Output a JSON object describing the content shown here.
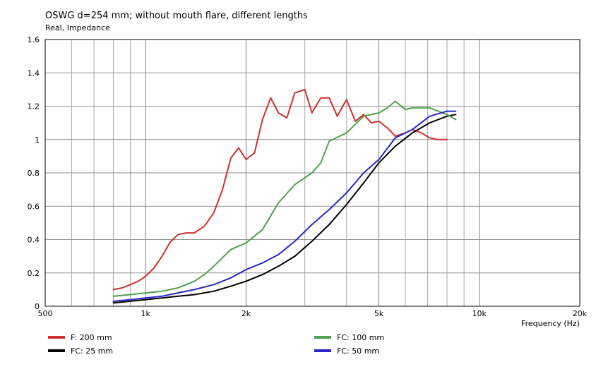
{
  "chart_data": {
    "type": "line",
    "title": "OSWG d=254 mm; without mouth flare, different lengths",
    "subtitle": "Real, Impedance",
    "xlabel": "Frequency  (Hz)",
    "ylabel": "",
    "x_scale": "log",
    "xlim": [
      500,
      20000
    ],
    "ylim": [
      0,
      1.6
    ],
    "grid": true,
    "legend_position": "bottom",
    "x_ticks": [
      {
        "value": 500,
        "label": "500"
      },
      {
        "value": 1000,
        "label": "1k"
      },
      {
        "value": 2000,
        "label": "2k"
      },
      {
        "value": 5000,
        "label": "5k"
      },
      {
        "value": 10000,
        "label": "10k"
      },
      {
        "value": 20000,
        "label": "20k"
      }
    ],
    "y_ticks": [
      {
        "value": 0,
        "label": "0"
      },
      {
        "value": 0.2,
        "label": "0.2"
      },
      {
        "value": 0.4,
        "label": "0.4"
      },
      {
        "value": 0.6,
        "label": "0.6"
      },
      {
        "value": 0.8,
        "label": "0.8"
      },
      {
        "value": 1.0,
        "label": "1"
      },
      {
        "value": 1.2,
        "label": "1.2"
      },
      {
        "value": 1.4,
        "label": "1.4"
      },
      {
        "value": 1.6,
        "label": "1.6"
      }
    ],
    "series": [
      {
        "name": "F: 200 mm",
        "color": "#d03030",
        "points": [
          [
            800,
            0.1
          ],
          [
            850,
            0.11
          ],
          [
            900,
            0.13
          ],
          [
            950,
            0.15
          ],
          [
            1000,
            0.18
          ],
          [
            1060,
            0.23
          ],
          [
            1120,
            0.3
          ],
          [
            1180,
            0.38
          ],
          [
            1250,
            0.43
          ],
          [
            1320,
            0.44
          ],
          [
            1400,
            0.44
          ],
          [
            1500,
            0.48
          ],
          [
            1600,
            0.56
          ],
          [
            1700,
            0.7
          ],
          [
            1800,
            0.89
          ],
          [
            1900,
            0.95
          ],
          [
            2000,
            0.88
          ],
          [
            2120,
            0.92
          ],
          [
            2240,
            1.12
          ],
          [
            2370,
            1.25
          ],
          [
            2500,
            1.16
          ],
          [
            2650,
            1.13
          ],
          [
            2800,
            1.28
          ],
          [
            3000,
            1.3
          ],
          [
            3150,
            1.16
          ],
          [
            3350,
            1.25
          ],
          [
            3550,
            1.25
          ],
          [
            3750,
            1.14
          ],
          [
            4000,
            1.24
          ],
          [
            4250,
            1.11
          ],
          [
            4500,
            1.15
          ],
          [
            4750,
            1.1
          ],
          [
            5000,
            1.11
          ],
          [
            5300,
            1.07
          ],
          [
            5600,
            1.02
          ],
          [
            6000,
            1.04
          ],
          [
            6300,
            1.06
          ],
          [
            6700,
            1.04
          ],
          [
            7100,
            1.01
          ],
          [
            7500,
            1.0
          ],
          [
            8000,
            1.0
          ]
        ]
      },
      {
        "name": "FC: 25 mm",
        "color": "#000000",
        "points": [
          [
            800,
            0.02
          ],
          [
            900,
            0.03
          ],
          [
            1000,
            0.04
          ],
          [
            1120,
            0.05
          ],
          [
            1250,
            0.06
          ],
          [
            1400,
            0.07
          ],
          [
            1600,
            0.09
          ],
          [
            1800,
            0.12
          ],
          [
            2000,
            0.15
          ],
          [
            2240,
            0.19
          ],
          [
            2500,
            0.24
          ],
          [
            2800,
            0.3
          ],
          [
            3150,
            0.39
          ],
          [
            3550,
            0.49
          ],
          [
            4000,
            0.61
          ],
          [
            4500,
            0.74
          ],
          [
            5000,
            0.86
          ],
          [
            5600,
            0.96
          ],
          [
            6300,
            1.04
          ],
          [
            7100,
            1.1
          ],
          [
            8000,
            1.14
          ],
          [
            8500,
            1.15
          ]
        ]
      },
      {
        "name": "FC: 100 mm",
        "color": "#50a050",
        "points": [
          [
            800,
            0.06
          ],
          [
            900,
            0.07
          ],
          [
            1000,
            0.08
          ],
          [
            1120,
            0.09
          ],
          [
            1250,
            0.11
          ],
          [
            1400,
            0.15
          ],
          [
            1500,
            0.19
          ],
          [
            1600,
            0.24
          ],
          [
            1800,
            0.34
          ],
          [
            2000,
            0.38
          ],
          [
            2240,
            0.46
          ],
          [
            2500,
            0.62
          ],
          [
            2800,
            0.73
          ],
          [
            3150,
            0.8
          ],
          [
            3350,
            0.86
          ],
          [
            3550,
            0.99
          ],
          [
            4000,
            1.04
          ],
          [
            4500,
            1.14
          ],
          [
            5000,
            1.16
          ],
          [
            5300,
            1.19
          ],
          [
            5600,
            1.23
          ],
          [
            6000,
            1.18
          ],
          [
            6300,
            1.19
          ],
          [
            7100,
            1.19
          ],
          [
            8000,
            1.15
          ],
          [
            8500,
            1.12
          ]
        ]
      },
      {
        "name": "FC: 50 mm",
        "color": "#2828c0",
        "points": [
          [
            800,
            0.03
          ],
          [
            900,
            0.04
          ],
          [
            1000,
            0.05
          ],
          [
            1120,
            0.06
          ],
          [
            1250,
            0.08
          ],
          [
            1400,
            0.1
          ],
          [
            1600,
            0.13
          ],
          [
            1800,
            0.17
          ],
          [
            2000,
            0.22
          ],
          [
            2240,
            0.26
          ],
          [
            2500,
            0.31
          ],
          [
            2800,
            0.39
          ],
          [
            3150,
            0.49
          ],
          [
            3550,
            0.58
          ],
          [
            4000,
            0.68
          ],
          [
            4500,
            0.8
          ],
          [
            5000,
            0.88
          ],
          [
            5600,
            1.01
          ],
          [
            6300,
            1.06
          ],
          [
            7100,
            1.14
          ],
          [
            8000,
            1.17
          ],
          [
            8500,
            1.17
          ]
        ]
      }
    ]
  }
}
